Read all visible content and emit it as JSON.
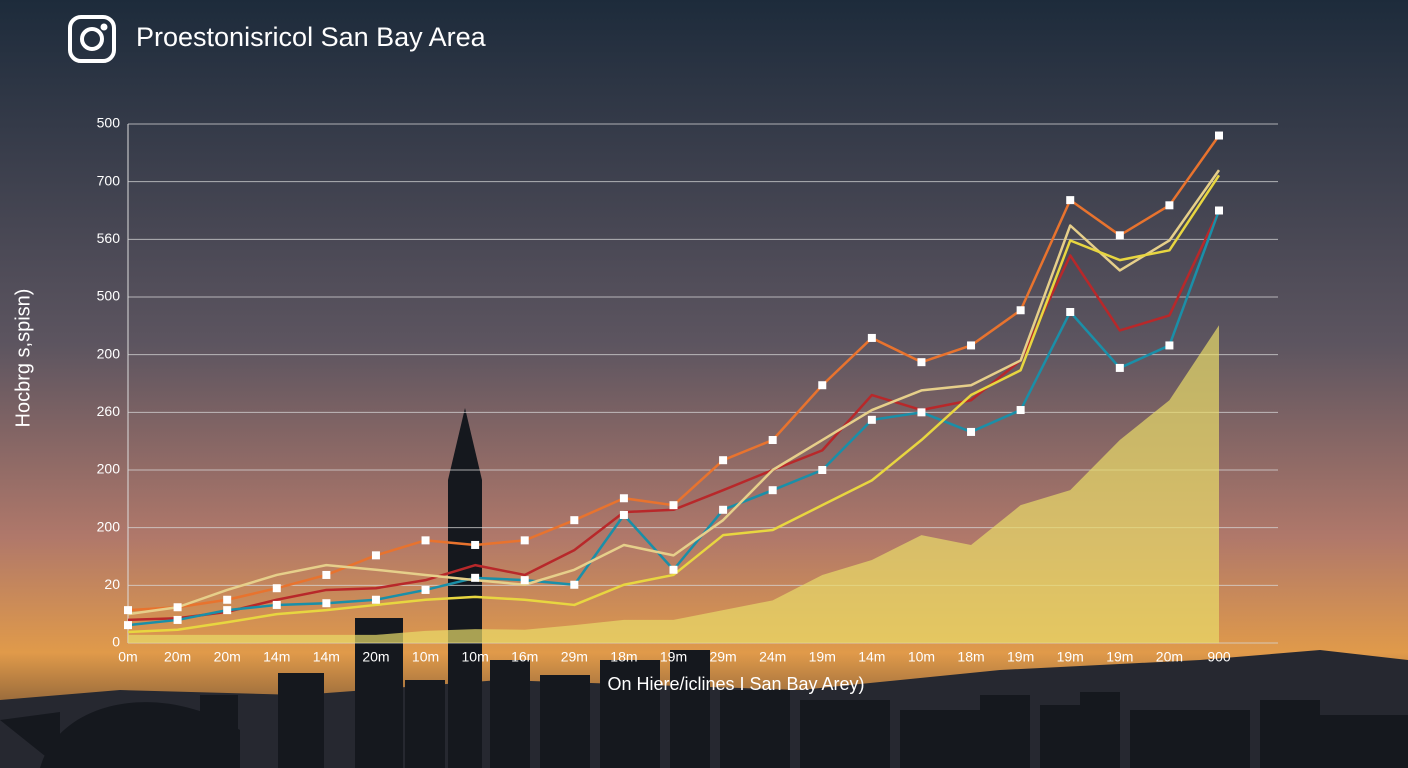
{
  "chart_data": {
    "type": "line",
    "title": "Proestonisricol San Bay Area",
    "y_label": "Hocbrg s,spisn)",
    "x_label": "On Hiere/iclines I San Bay Arey)",
    "categories": [
      "0m",
      "20m",
      "20m",
      "14m",
      "14m",
      "20m",
      "10m",
      "10m",
      "16m",
      "29m",
      "18m",
      "19m",
      "29m",
      "24m",
      "19m",
      "14m",
      "10m",
      "18m",
      "19m",
      "19m",
      "19m",
      "20m",
      "900"
    ],
    "ylim": [
      0,
      900
    ],
    "yticks": [
      0,
      {
        "value": 100,
        "label": "20"
      },
      200,
      {
        "value": 300,
        "label": "200"
      },
      {
        "value": 400,
        "label": "260"
      },
      {
        "value": 500,
        "label": "200"
      },
      {
        "value": 600,
        "label": "500"
      },
      {
        "value": 700,
        "label": "560"
      },
      {
        "value": 800,
        "label": "700"
      },
      {
        "value": 900,
        "label": "500"
      }
    ],
    "grid": true,
    "area": {
      "color": "#e8dc6a",
      "values": [
        14,
        14,
        14,
        14,
        14,
        14,
        21,
        24,
        23,
        31,
        40,
        40,
        57,
        74,
        118,
        144,
        187,
        170,
        239,
        265,
        352,
        421,
        551
      ]
    },
    "series": [
      {
        "color": "#e8732e",
        "values": [
          57,
          62,
          75,
          95,
          118,
          152,
          178,
          170,
          178,
          213,
          251,
          239,
          317,
          352,
          447,
          529,
          487,
          516,
          577,
          768,
          707,
          759,
          880
        ]
      },
      {
        "color": "#b8282a",
        "values": [
          40,
          43,
          54,
          75,
          92,
          95,
          109,
          135,
          118,
          161,
          227,
          231,
          265,
          300,
          334,
          430,
          404,
          421,
          490,
          672,
          542,
          568,
          750
        ]
      },
      {
        "color": "#1a8fa8",
        "values": [
          31,
          40,
          57,
          66,
          69,
          75,
          92,
          113,
          109,
          101,
          222,
          127,
          231,
          265,
          300,
          387,
          400,
          366,
          404,
          574,
          477,
          516,
          750
        ]
      },
      {
        "color": "#e6cf8a",
        "values": [
          50,
          62,
          92,
          118,
          135,
          127,
          118,
          109,
          101,
          127,
          170,
          152,
          213,
          300,
          352,
          404,
          438,
          447,
          490,
          724,
          646,
          698,
          820
        ]
      },
      {
        "color": "#e8d640",
        "values": [
          19,
          23,
          36,
          50,
          57,
          66,
          75,
          80,
          75,
          66,
          101,
          118,
          187,
          196,
          239,
          282,
          352,
          430,
          473,
          698,
          664,
          681,
          811
        ]
      }
    ]
  }
}
